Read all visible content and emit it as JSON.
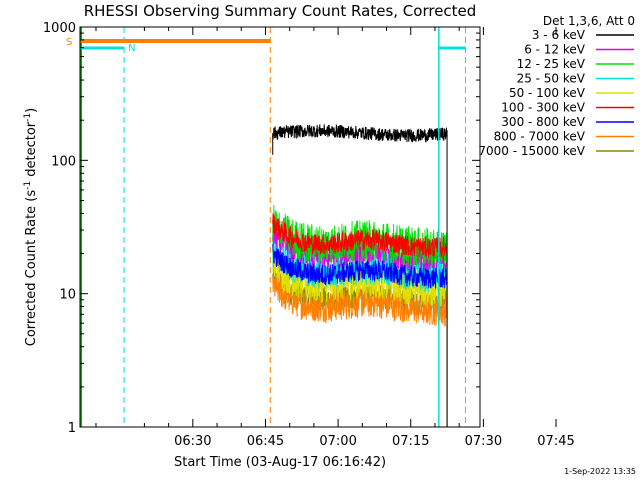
{
  "chart_data": {
    "type": "line",
    "title": "RHESSI Observing Summary Count Rates, Corrected",
    "xlabel": "Start Time (03-Aug-17 06:16:42)",
    "ylabel_main": "Corrected Count Rate (s",
    "ylabel_sup1": "-1",
    "ylabel_mid": " detector",
    "ylabel_sup2": "-1",
    "ylabel_end": ")",
    "footer": "1-Sep-2022 13:35",
    "x_range_minutes": [
      6.7,
      89.3
    ],
    "y_scale": "log",
    "y_range": [
      1,
      1000
    ],
    "x_ticks": [
      {
        "label": "06:30",
        "min": 30
      },
      {
        "label": "06:45",
        "min": 45
      },
      {
        "label": "07:00",
        "min": 60
      },
      {
        "label": "07:15",
        "min": 75
      },
      {
        "label": "07:30",
        "min": 90
      },
      {
        "label": "07:45",
        "min": 105
      }
    ],
    "y_ticks": [
      {
        "label": "1",
        "v": 1
      },
      {
        "label": "10",
        "v": 10
      },
      {
        "label": "100",
        "v": 100
      },
      {
        "label": "1000",
        "v": 1000
      }
    ],
    "legend_title": "Det 1,3,6, Att 0",
    "series": [
      {
        "name": "3 - 6 keV",
        "color": "#000000",
        "level": 160,
        "noise": 0.05
      },
      {
        "name": "6 - 12 keV",
        "color": "#e000e0",
        "level": 18,
        "noise": 0.1
      },
      {
        "name": "12 - 25 keV",
        "color": "#00e000",
        "level": 22,
        "noise": 0.15
      },
      {
        "name": "25 - 50 keV",
        "color": "#00e0e0",
        "level": 14,
        "noise": 0.14
      },
      {
        "name": "50 - 100 keV",
        "color": "#e0e000",
        "level": 11,
        "noise": 0.14
      },
      {
        "name": "100 - 300 keV",
        "color": "#ff0000",
        "level": 22,
        "noise": 0.08
      },
      {
        "name": "300 - 800 keV",
        "color": "#0000ff",
        "level": 13,
        "noise": 0.08
      },
      {
        "name": "800 - 7000 keV",
        "color": "#ff8000",
        "level": 7.5,
        "noise": 0.12
      },
      {
        "name": "7000 - 15000 keV",
        "color": "#888800",
        "level": 8.5,
        "noise": 0.1
      }
    ],
    "flags": [
      {
        "label": "S",
        "color": "#ff8000"
      },
      {
        "label": "N",
        "color": "#00e0e0"
      }
    ]
  }
}
